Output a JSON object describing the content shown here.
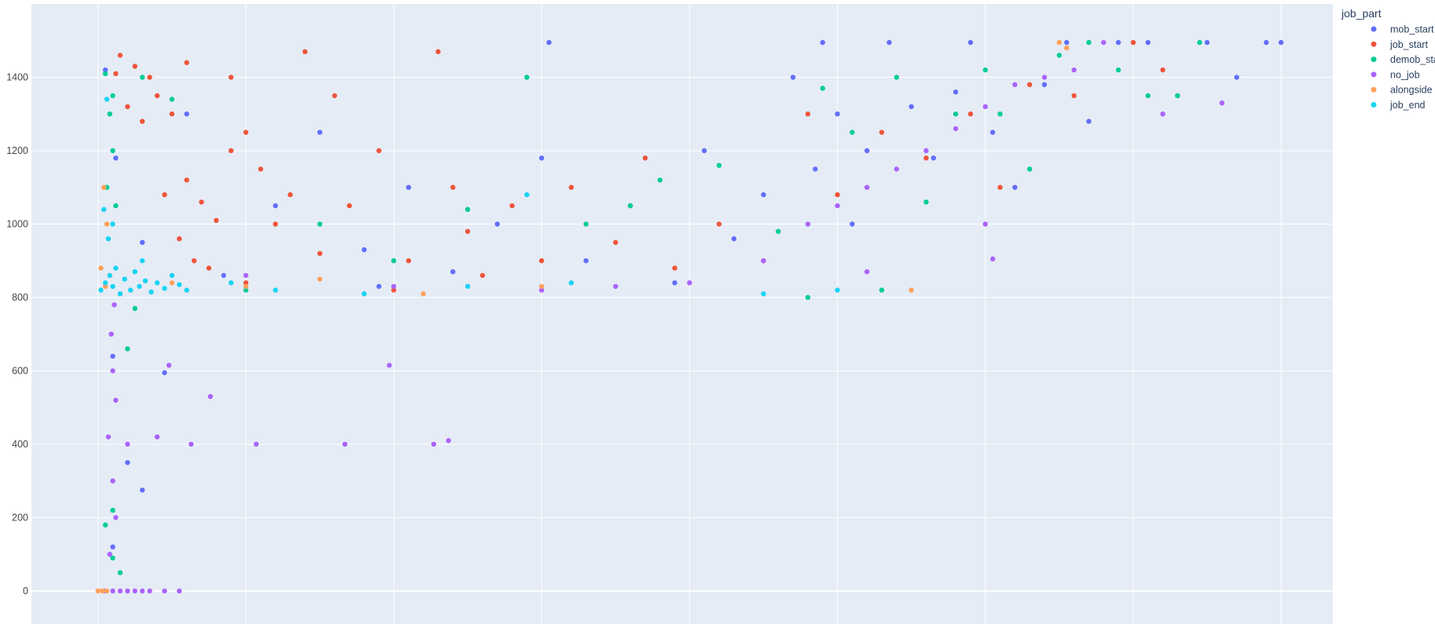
{
  "chart_data": {
    "type": "scatter",
    "title": "",
    "xlabel": "",
    "ylabel": "",
    "ylim": [
      -90,
      1600
    ],
    "xlim": [
      -0.45,
      8.35
    ],
    "y_ticks": [
      "0",
      "200",
      "400",
      "600",
      "800",
      "1000",
      "1200",
      "1400"
    ],
    "x_gridlines": [
      0,
      1,
      2,
      3,
      4,
      5,
      6,
      7,
      8
    ],
    "grid": true,
    "plot_bgcolor": "#e5ecf6",
    "legend": {
      "title": "job_part",
      "position": "top-right"
    },
    "series": [
      {
        "name": "mob_start",
        "color": "#636efa",
        "points": [
          [
            0.05,
            1420
          ],
          [
            0.12,
            1180
          ],
          [
            0.3,
            950
          ],
          [
            0.6,
            1300
          ],
          [
            0.85,
            860
          ],
          [
            1.2,
            1050
          ],
          [
            1.5,
            1250
          ],
          [
            1.8,
            930
          ],
          [
            2.1,
            1100
          ],
          [
            2.4,
            870
          ],
          [
            2.7,
            1000
          ],
          [
            3.0,
            1180
          ],
          [
            3.3,
            900
          ],
          [
            3.6,
            1050
          ],
          [
            3.9,
            840
          ],
          [
            4.1,
            1200
          ],
          [
            4.3,
            960
          ],
          [
            4.5,
            1080
          ],
          [
            4.7,
            1400
          ],
          [
            4.85,
            1150
          ],
          [
            4.9,
            1495
          ],
          [
            5.0,
            1300
          ],
          [
            5.1,
            1000
          ],
          [
            5.2,
            1200
          ],
          [
            5.35,
            1495
          ],
          [
            5.5,
            1320
          ],
          [
            5.65,
            1180
          ],
          [
            5.8,
            1360
          ],
          [
            5.9,
            1495
          ],
          [
            6.05,
            1250
          ],
          [
            6.2,
            1100
          ],
          [
            6.4,
            1380
          ],
          [
            6.55,
            1495
          ],
          [
            6.7,
            1280
          ],
          [
            6.9,
            1495
          ],
          [
            7.1,
            1495
          ],
          [
            7.3,
            1350
          ],
          [
            7.5,
            1495
          ],
          [
            7.7,
            1400
          ],
          [
            7.9,
            1495
          ],
          [
            8.0,
            1495
          ],
          [
            0.1,
            640
          ],
          [
            0.3,
            275
          ],
          [
            0.45,
            595
          ],
          [
            0.2,
            350
          ],
          [
            0.1,
            120
          ],
          [
            3.05,
            1495
          ],
          [
            1.9,
            830
          ]
        ]
      },
      {
        "name": "job_start",
        "color": "#ef553b",
        "points": [
          [
            0.15,
            1460
          ],
          [
            0.25,
            1430
          ],
          [
            0.35,
            1400
          ],
          [
            0.2,
            1320
          ],
          [
            0.3,
            1280
          ],
          [
            0.4,
            1350
          ],
          [
            0.5,
            1300
          ],
          [
            0.6,
            1120
          ],
          [
            0.7,
            1060
          ],
          [
            0.8,
            1010
          ],
          [
            0.9,
            1200
          ],
          [
            1.0,
            1250
          ],
          [
            0.45,
            1080
          ],
          [
            0.55,
            960
          ],
          [
            0.65,
            900
          ],
          [
            0.75,
            880
          ],
          [
            1.1,
            1150
          ],
          [
            1.2,
            1000
          ],
          [
            1.3,
            1080
          ],
          [
            1.4,
            1470
          ],
          [
            1.5,
            920
          ],
          [
            1.7,
            1050
          ],
          [
            1.9,
            1200
          ],
          [
            2.1,
            900
          ],
          [
            2.3,
            1470
          ],
          [
            2.4,
            1100
          ],
          [
            2.5,
            980
          ],
          [
            2.6,
            860
          ],
          [
            2.8,
            1050
          ],
          [
            3.0,
            900
          ],
          [
            3.2,
            1100
          ],
          [
            3.5,
            950
          ],
          [
            3.7,
            1180
          ],
          [
            3.9,
            880
          ],
          [
            4.2,
            1000
          ],
          [
            4.5,
            900
          ],
          [
            4.8,
            1300
          ],
          [
            5.0,
            1080
          ],
          [
            5.3,
            1250
          ],
          [
            5.6,
            1180
          ],
          [
            5.9,
            1300
          ],
          [
            6.1,
            1100
          ],
          [
            6.3,
            1380
          ],
          [
            6.6,
            1350
          ],
          [
            7.0,
            1495
          ],
          [
            7.2,
            1420
          ],
          [
            1.0,
            840
          ],
          [
            2.0,
            820
          ],
          [
            0.9,
            1400
          ],
          [
            0.12,
            1410
          ],
          [
            0.6,
            1440
          ],
          [
            1.6,
            1350
          ]
        ]
      },
      {
        "name": "demob_start",
        "color": "#00cc96",
        "points": [
          [
            0.05,
            1410
          ],
          [
            0.08,
            1300
          ],
          [
            0.1,
            1200
          ],
          [
            0.06,
            1100
          ],
          [
            0.12,
            1050
          ],
          [
            0.3,
            1400
          ],
          [
            0.5,
            1340
          ],
          [
            0.1,
            1350
          ],
          [
            0.05,
            180
          ],
          [
            0.1,
            90
          ],
          [
            0.15,
            50
          ],
          [
            0.1,
            220
          ],
          [
            0.2,
            660
          ],
          [
            1.0,
            820
          ],
          [
            1.5,
            1000
          ],
          [
            2.0,
            900
          ],
          [
            2.5,
            1040
          ],
          [
            2.9,
            1400
          ],
          [
            3.3,
            1000
          ],
          [
            3.6,
            1050
          ],
          [
            3.8,
            1120
          ],
          [
            4.2,
            1160
          ],
          [
            4.6,
            980
          ],
          [
            4.9,
            1370
          ],
          [
            5.1,
            1250
          ],
          [
            5.4,
            1400
          ],
          [
            5.6,
            1060
          ],
          [
            5.8,
            1300
          ],
          [
            6.0,
            1420
          ],
          [
            6.1,
            1300
          ],
          [
            6.3,
            1150
          ],
          [
            6.5,
            1460
          ],
          [
            6.7,
            1495
          ],
          [
            6.9,
            1420
          ],
          [
            7.1,
            1350
          ],
          [
            7.3,
            1350
          ],
          [
            7.45,
            1495
          ],
          [
            5.3,
            820
          ],
          [
            4.8,
            800
          ],
          [
            0.25,
            770
          ]
        ]
      },
      {
        "name": "no_job",
        "color": "#ab63fa",
        "points": [
          [
            0.05,
            0
          ],
          [
            0.1,
            0
          ],
          [
            0.15,
            0
          ],
          [
            0.2,
            0
          ],
          [
            0.25,
            0
          ],
          [
            0.3,
            0
          ],
          [
            0.35,
            0
          ],
          [
            0.45,
            0
          ],
          [
            0.55,
            0
          ],
          [
            0.08,
            100
          ],
          [
            0.12,
            200
          ],
          [
            0.1,
            300
          ],
          [
            0.07,
            420
          ],
          [
            0.12,
            520
          ],
          [
            0.1,
            600
          ],
          [
            0.09,
            700
          ],
          [
            0.11,
            780
          ],
          [
            0.2,
            400
          ],
          [
            0.4,
            420
          ],
          [
            0.63,
            400
          ],
          [
            1.07,
            400
          ],
          [
            1.67,
            400
          ],
          [
            2.27,
            400
          ],
          [
            2.37,
            410
          ],
          [
            1.97,
            615
          ],
          [
            0.76,
            530
          ],
          [
            0.48,
            615
          ],
          [
            1.0,
            860
          ],
          [
            2.0,
            830
          ],
          [
            3.0,
            820
          ],
          [
            3.5,
            830
          ],
          [
            4.0,
            840
          ],
          [
            4.5,
            900
          ],
          [
            4.8,
            1000
          ],
          [
            5.0,
            1050
          ],
          [
            5.2,
            1100
          ],
          [
            5.4,
            1150
          ],
          [
            5.6,
            1200
          ],
          [
            5.8,
            1260
          ],
          [
            6.0,
            1320
          ],
          [
            6.2,
            1380
          ],
          [
            6.4,
            1400
          ],
          [
            6.6,
            1420
          ],
          [
            6.8,
            1495
          ],
          [
            7.2,
            1300
          ],
          [
            7.6,
            1330
          ],
          [
            5.2,
            870
          ],
          [
            6.0,
            1000
          ],
          [
            6.05,
            905
          ]
        ]
      },
      {
        "name": "alongside",
        "color": "#ffa15a",
        "points": [
          [
            0.0,
            0
          ],
          [
            0.03,
            0
          ],
          [
            0.06,
            0
          ],
          [
            0.02,
            880
          ],
          [
            0.05,
            830
          ],
          [
            0.08,
            860
          ],
          [
            0.04,
            1100
          ],
          [
            0.06,
            1000
          ],
          [
            0.5,
            840
          ],
          [
            1.0,
            830
          ],
          [
            1.5,
            850
          ],
          [
            2.2,
            810
          ],
          [
            3.0,
            830
          ],
          [
            6.5,
            1495
          ],
          [
            6.55,
            1480
          ],
          [
            5.5,
            820
          ]
        ]
      },
      {
        "name": "job_end",
        "color": "#19d3f3",
        "points": [
          [
            0.02,
            820
          ],
          [
            0.05,
            840
          ],
          [
            0.08,
            860
          ],
          [
            0.1,
            830
          ],
          [
            0.12,
            880
          ],
          [
            0.15,
            810
          ],
          [
            0.18,
            850
          ],
          [
            0.22,
            820
          ],
          [
            0.25,
            870
          ],
          [
            0.28,
            830
          ],
          [
            0.32,
            845
          ],
          [
            0.36,
            815
          ],
          [
            0.4,
            840
          ],
          [
            0.45,
            825
          ],
          [
            0.5,
            860
          ],
          [
            0.55,
            835
          ],
          [
            0.06,
            1340
          ],
          [
            0.04,
            1040
          ],
          [
            0.07,
            960
          ],
          [
            0.1,
            1000
          ],
          [
            0.3,
            900
          ],
          [
            0.6,
            820
          ],
          [
            0.9,
            840
          ],
          [
            1.2,
            820
          ],
          [
            1.8,
            810
          ],
          [
            2.5,
            830
          ],
          [
            2.9,
            1080
          ],
          [
            3.2,
            840
          ],
          [
            4.5,
            810
          ],
          [
            5.0,
            820
          ]
        ]
      }
    ]
  }
}
